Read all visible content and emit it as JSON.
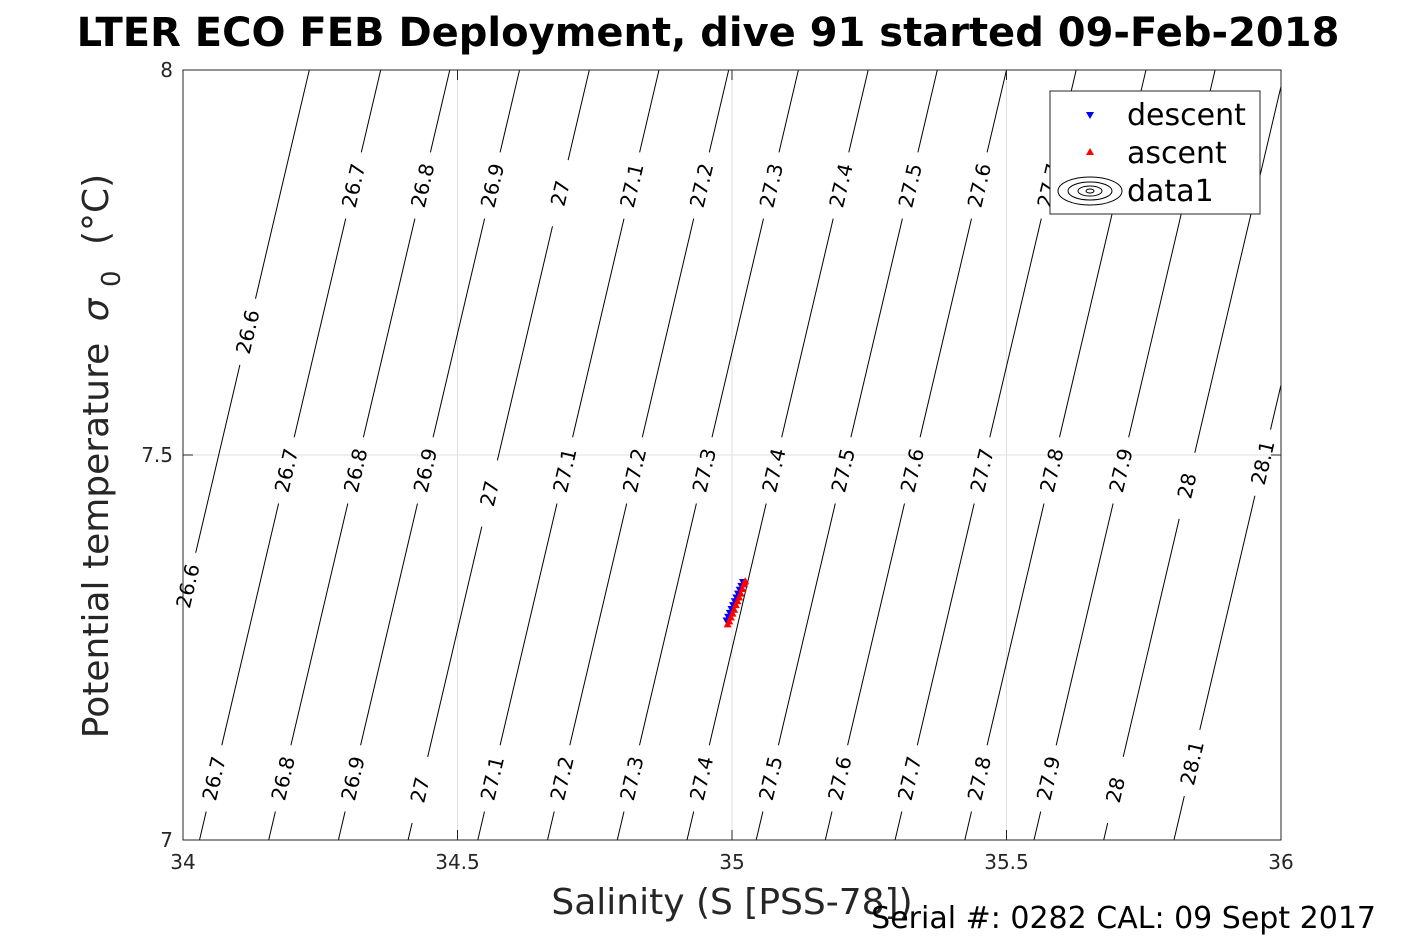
{
  "figure": {
    "title": "LTER ECO FEB Deployment, dive 91 started 09-Feb-2018",
    "footer": "Serial #: 0282  CAL: 09 Sept 2017"
  },
  "chart_data": {
    "type": "scatter",
    "title": "LTER ECO FEB Deployment, dive 91 started 09-Feb-2018",
    "xlabel": "Salinity (S [PSS-78])",
    "ylabel_main": "Potential temperature",
    "ylabel_sigma": "σ",
    "ylabel_sub": "0",
    "ylabel_unit": "(°C)",
    "xlim": [
      34,
      36
    ],
    "ylim": [
      7,
      8
    ],
    "xticks": [
      34,
      34.5,
      35,
      35.5,
      36
    ],
    "xtick_labels": [
      "34",
      "34.5",
      "35",
      "35.5",
      "36"
    ],
    "yticks": [
      7,
      7.5,
      8
    ],
    "ytick_labels": [
      "7",
      "7.5",
      "8"
    ],
    "grid": true,
    "legend_placement": "top-right",
    "series": [
      {
        "name": "descent",
        "marker": "triangle-down",
        "color": "#0000ff",
        "x": [
          34.99,
          34.993,
          34.996,
          34.999,
          35.002,
          35.005,
          35.008,
          35.011,
          35.014,
          35.017,
          35.02
        ],
        "y": [
          7.285,
          7.29,
          7.295,
          7.3,
          7.305,
          7.31,
          7.315,
          7.32,
          7.325,
          7.33,
          7.335
        ]
      },
      {
        "name": "ascent",
        "marker": "triangle-up",
        "color": "#ff0000",
        "x": [
          34.992,
          34.995,
          34.998,
          35.001,
          35.004,
          35.007,
          35.01,
          35.013,
          35.016,
          35.019,
          35.022,
          35.024
        ],
        "y": [
          7.28,
          7.284,
          7.289,
          7.294,
          7.299,
          7.305,
          7.31,
          7.315,
          7.32,
          7.326,
          7.332,
          7.336
        ]
      },
      {
        "name": "data1",
        "marker": "contour",
        "color": "#000000"
      }
    ],
    "contours": {
      "color": "#000000",
      "levels": [
        26.6,
        26.7,
        26.8,
        26.9,
        27,
        27.1,
        27.2,
        27.3,
        27.4,
        27.5,
        27.6,
        27.7,
        27.8,
        27.9,
        28,
        28.1
      ],
      "level_labels": [
        "26.6",
        "26.7",
        "26.8",
        "26.9",
        "27",
        "27.1",
        "27.2",
        "27.3",
        "27.4",
        "27.5",
        "27.6",
        "27.7",
        "27.8",
        "27.9",
        "28",
        "28.1"
      ],
      "salinity_at_t7": [
        33.9,
        34.03,
        34.156,
        34.283,
        34.41,
        34.537,
        34.664,
        34.791,
        34.918,
        35.044,
        35.17,
        35.297,
        35.424,
        35.55,
        35.677,
        35.805
      ],
      "salinity_slope_per_degC": 0.33,
      "labels": [
        {
          "level": 26.6,
          "text": "26.6",
          "y": 7.66
        },
        {
          "level": 26.6,
          "text": "26.6",
          "y": 7.33
        },
        {
          "level": 26.7,
          "text": "26.7",
          "y": 7.85
        },
        {
          "level": 26.7,
          "text": "26.7",
          "y": 7.48
        },
        {
          "level": 26.7,
          "text": "26.7",
          "y": 7.08
        },
        {
          "level": 26.8,
          "text": "26.8",
          "y": 7.85
        },
        {
          "level": 26.8,
          "text": "26.8",
          "y": 7.48
        },
        {
          "level": 26.8,
          "text": "26.8",
          "y": 7.08
        },
        {
          "level": 26.9,
          "text": "26.9",
          "y": 7.85
        },
        {
          "level": 26.9,
          "text": "26.9",
          "y": 7.48
        },
        {
          "level": 26.9,
          "text": "26.9",
          "y": 7.08
        },
        {
          "level": 27,
          "text": "27",
          "y": 7.84
        },
        {
          "level": 27,
          "text": "27",
          "y": 7.45
        },
        {
          "level": 27,
          "text": "27",
          "y": 7.065
        },
        {
          "level": 27.1,
          "text": "27.1",
          "y": 7.85
        },
        {
          "level": 27.1,
          "text": "27.1",
          "y": 7.48
        },
        {
          "level": 27.1,
          "text": "27.1",
          "y": 7.08
        },
        {
          "level": 27.2,
          "text": "27.2",
          "y": 7.85
        },
        {
          "level": 27.2,
          "text": "27.2",
          "y": 7.48
        },
        {
          "level": 27.2,
          "text": "27.2",
          "y": 7.08
        },
        {
          "level": 27.3,
          "text": "27.3",
          "y": 7.85
        },
        {
          "level": 27.3,
          "text": "27.3",
          "y": 7.48
        },
        {
          "level": 27.3,
          "text": "27.3",
          "y": 7.08
        },
        {
          "level": 27.4,
          "text": "27.4",
          "y": 7.85
        },
        {
          "level": 27.4,
          "text": "27.4",
          "y": 7.48
        },
        {
          "level": 27.4,
          "text": "27.4",
          "y": 7.08
        },
        {
          "level": 27.5,
          "text": "27.5",
          "y": 7.85
        },
        {
          "level": 27.5,
          "text": "27.5",
          "y": 7.48
        },
        {
          "level": 27.5,
          "text": "27.5",
          "y": 7.08
        },
        {
          "level": 27.6,
          "text": "27.6",
          "y": 7.85
        },
        {
          "level": 27.6,
          "text": "27.6",
          "y": 7.48
        },
        {
          "level": 27.6,
          "text": "27.6",
          "y": 7.08
        },
        {
          "level": 27.7,
          "text": "27.7",
          "y": 7.85
        },
        {
          "level": 27.7,
          "text": "27.7",
          "y": 7.48
        },
        {
          "level": 27.7,
          "text": "27.7",
          "y": 7.08
        },
        {
          "level": 27.8,
          "text": "27.8",
          "y": 7.48
        },
        {
          "level": 27.8,
          "text": "27.8",
          "y": 7.08
        },
        {
          "level": 27.9,
          "text": "27.9",
          "y": 7.48
        },
        {
          "level": 27.9,
          "text": "27.9",
          "y": 7.08
        },
        {
          "level": 28,
          "text": "28",
          "y": 7.46
        },
        {
          "level": 28,
          "text": "28",
          "y": 7.065
        },
        {
          "level": 28.1,
          "text": "28.1",
          "y": 7.49
        },
        {
          "level": 28.1,
          "text": "28.1",
          "y": 7.1
        }
      ]
    }
  }
}
